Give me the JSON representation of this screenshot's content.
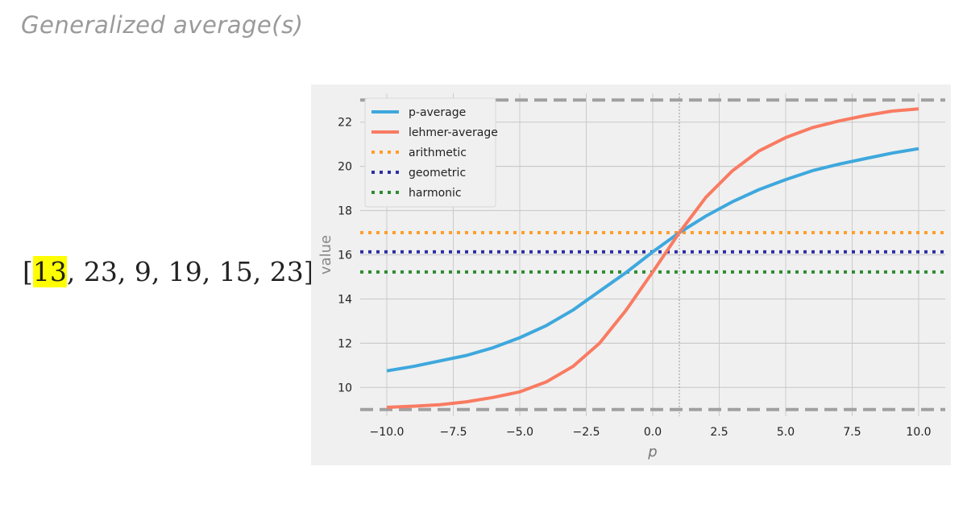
{
  "slide": {
    "title": "Generalized average(s)",
    "list_open": "[",
    "highlighted_value": "13",
    "list_rest": ", 23, 9, 19, 15, 23]"
  },
  "chart_data": {
    "type": "line",
    "xlabel": "p",
    "ylabel": "value",
    "xlim": [
      -11,
      11
    ],
    "ylim": [
      8.7,
      23.3
    ],
    "xticks": [
      "−10.0",
      "−7.5",
      "−5.0",
      "−2.5",
      "0.0",
      "2.5",
      "5.0",
      "7.5",
      "10.0"
    ],
    "xtick_values": [
      -10,
      -7.5,
      -5,
      -2.5,
      0,
      2.5,
      5,
      7.5,
      10
    ],
    "yticks": [
      "10",
      "12",
      "14",
      "16",
      "18",
      "20",
      "22"
    ],
    "ytick_values": [
      10,
      12,
      14,
      16,
      18,
      20,
      22
    ],
    "grid": true,
    "legend_placement": "top-left",
    "x": [
      -10,
      -9,
      -8,
      -7,
      -6,
      -5,
      -4,
      -3,
      -2,
      -1,
      0,
      1,
      2,
      3,
      4,
      5,
      6,
      7,
      8,
      9,
      10
    ],
    "series": [
      {
        "name": "p-average",
        "style": "solid",
        "color": "#3ea8dd",
        "values": [
          10.75,
          10.95,
          11.2,
          11.45,
          11.8,
          12.25,
          12.8,
          13.5,
          14.35,
          15.2,
          16.13,
          17,
          17.75,
          18.4,
          18.95,
          19.4,
          19.8,
          20.1,
          20.35,
          20.6,
          20.8
        ]
      },
      {
        "name": "lehmer-average",
        "style": "solid",
        "color": "#f97b62",
        "values": [
          9.1,
          9.15,
          9.22,
          9.35,
          9.55,
          9.8,
          10.25,
          10.95,
          12.0,
          13.5,
          15.22,
          17,
          18.6,
          19.8,
          20.7,
          21.3,
          21.75,
          22.05,
          22.3,
          22.5,
          22.6
        ]
      }
    ],
    "hlines": [
      {
        "name": "arithmetic",
        "value": 17,
        "style": "dotted",
        "color": "#ff9e2c"
      },
      {
        "name": "geometric",
        "value": 16.13,
        "style": "dotted",
        "color": "#2e2ea8"
      },
      {
        "name": "harmonic",
        "value": 15.22,
        "style": "dotted",
        "color": "#2e8b2e"
      },
      {
        "value": 23,
        "style": "dashed",
        "color": "#a0a0a0"
      },
      {
        "value": 9,
        "style": "dashed",
        "color": "#a0a0a0"
      }
    ],
    "vline": {
      "value": 1,
      "style": "dotted",
      "color": "#999999"
    }
  }
}
